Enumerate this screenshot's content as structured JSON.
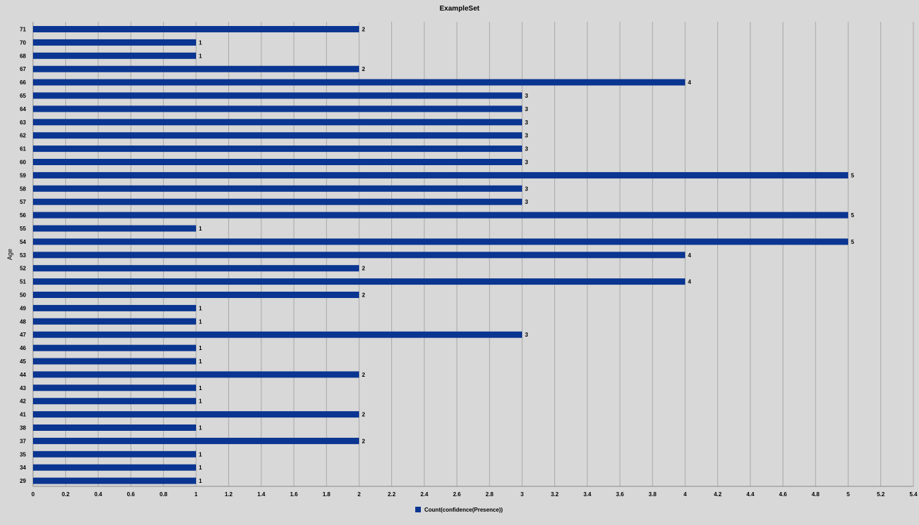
{
  "chart_data": {
    "type": "bar",
    "orientation": "horizontal",
    "title": "ExampleSet",
    "ylabel": "Age",
    "xlabel": "",
    "categories": [
      "71",
      "70",
      "68",
      "67",
      "66",
      "65",
      "64",
      "63",
      "62",
      "61",
      "60",
      "59",
      "58",
      "57",
      "56",
      "55",
      "54",
      "53",
      "52",
      "51",
      "50",
      "49",
      "48",
      "47",
      "46",
      "45",
      "44",
      "43",
      "42",
      "41",
      "38",
      "37",
      "35",
      "34",
      "29"
    ],
    "series": [
      {
        "name": "Count(confidence(Presence))",
        "color": "#0a3591",
        "values": [
          2,
          1,
          1,
          2,
          4,
          3,
          3,
          3,
          3,
          3,
          3,
          5,
          3,
          3,
          5,
          1,
          5,
          4,
          2,
          4,
          2,
          1,
          1,
          3,
          1,
          1,
          2,
          1,
          1,
          2,
          1,
          2,
          1,
          1,
          1
        ]
      }
    ],
    "xlim": [
      0,
      5.4
    ],
    "x_ticks": [
      "0",
      "0.2",
      "0.4",
      "0.6",
      "0.8",
      "1",
      "1.2",
      "1.4",
      "1.6",
      "1.8",
      "2",
      "2.2",
      "2.4",
      "2.6",
      "2.8",
      "3",
      "3.2",
      "3.4",
      "3.6",
      "3.8",
      "4",
      "4.2",
      "4.4",
      "4.6",
      "4.8",
      "5",
      "5.2",
      "5.4"
    ],
    "grid": "vertical",
    "legend": "bottom-center",
    "show_data_labels": true
  }
}
